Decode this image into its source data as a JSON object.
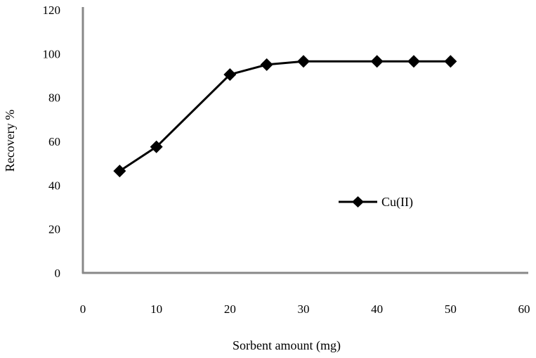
{
  "chart_data": {
    "type": "line",
    "title": "",
    "xlabel": "Sorbent amount (mg)",
    "ylabel": "Recovery %",
    "xlim": [
      0,
      60
    ],
    "ylim": [
      0,
      120
    ],
    "xticks": [
      0,
      10,
      20,
      30,
      40,
      50,
      60
    ],
    "yticks": [
      0,
      20,
      40,
      60,
      80,
      100,
      120
    ],
    "grid": false,
    "legend_position": "right",
    "series": [
      {
        "name": "Cu(II)",
        "color": "#000000",
        "marker": "diamond",
        "x": [
          5,
          10,
          20,
          25,
          30,
          40,
          45,
          50
        ],
        "y": [
          46.5,
          57.5,
          90.5,
          95,
          96.5,
          96.5,
          96.5,
          96.5
        ]
      }
    ]
  }
}
